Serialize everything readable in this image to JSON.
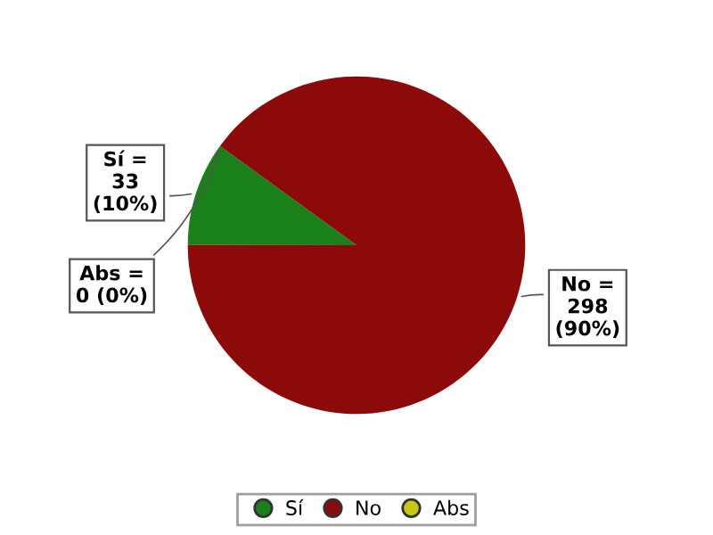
{
  "chart_data": {
    "type": "pie",
    "categories": [
      "Sí",
      "No",
      "Abs"
    ],
    "values": [
      33,
      298,
      0
    ],
    "colors": [
      "#1a801a",
      "#8c0a0a",
      "#c8c814"
    ],
    "value_labels": [
      "Sí =\n33\n(10%)",
      "No =\n298\n(90%)",
      "Abs =\n0 (0%)"
    ],
    "legend": "bottom"
  }
}
